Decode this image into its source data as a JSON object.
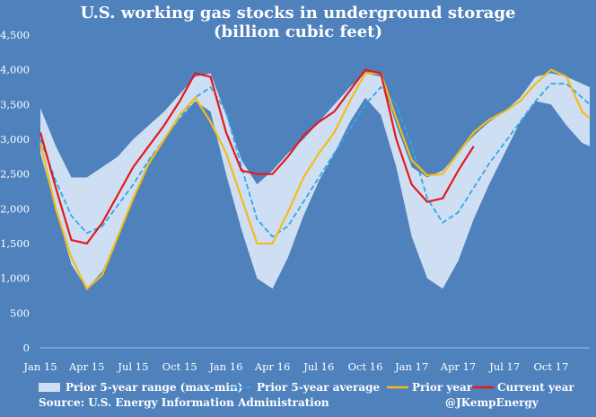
{
  "chart_data": {
    "type": "line",
    "title": "U.S. working gas stocks in underground storage",
    "subtitle": "(billion cubic feet)",
    "xlabel": "",
    "ylabel": "",
    "x_tick_labels": [
      "Jan 15",
      "Apr 15",
      "Jul 15",
      "Oct 15",
      "Jan 16",
      "Apr 16",
      "Jul 16",
      "Oct 16",
      "Jan 17",
      "Apr 17",
      "Jul 17",
      "Oct 17"
    ],
    "y_ticks": [
      0,
      500,
      1000,
      1500,
      2000,
      2500,
      3000,
      3500,
      4000,
      4500
    ],
    "y_tick_labels": [
      "0",
      "500",
      "1,000",
      "1,500",
      "2,000",
      "2,500",
      "3,000",
      "3,500",
      "4,000",
      "4,500"
    ],
    "ylim": [
      0,
      4500
    ],
    "x_unit": "months since Jan 2015",
    "xlim": [
      0,
      35.5
    ],
    "grid": false,
    "legend_position": "bottom",
    "source": "Source: U.S. Energy Information Administration",
    "credit": "@JKempEnergy",
    "range_band": {
      "name": "Prior 5-year range (max-min)",
      "color": "#cfdff3",
      "x": [
        0,
        1,
        2,
        3,
        4,
        5,
        6,
        7,
        8,
        9,
        10,
        11,
        12,
        13,
        14,
        15,
        16,
        17,
        18,
        19,
        20,
        21,
        22,
        23,
        24,
        25,
        26,
        27,
        28,
        29,
        30,
        31,
        32,
        33,
        34,
        35,
        35.5
      ],
      "upper": [
        3450,
        2900,
        2450,
        2450,
        2600,
        2750,
        3000,
        3200,
        3400,
        3650,
        3900,
        3950,
        3350,
        2700,
        2350,
        2550,
        2800,
        3000,
        3250,
        3500,
        3750,
        3950,
        3900,
        3200,
        2600,
        2450,
        2550,
        2800,
        3050,
        3250,
        3400,
        3600,
        3900,
        3950,
        3900,
        3800,
        3750
      ],
      "lower": [
        2800,
        2000,
        1200,
        850,
        1100,
        1600,
        2150,
        2700,
        3000,
        3300,
        3550,
        3400,
        2500,
        1700,
        1000,
        850,
        1300,
        1900,
        2400,
        2800,
        3250,
        3600,
        3350,
        2600,
        1600,
        1000,
        850,
        1250,
        1850,
        2350,
        2800,
        3250,
        3550,
        3500,
        3200,
        2950,
        2900
      ]
    },
    "series": [
      {
        "name": "Prior 5-year average",
        "color": "#2fa7e8",
        "dash": true,
        "x": [
          0,
          1,
          2,
          3,
          4,
          5,
          6,
          7,
          8,
          9,
          10,
          11,
          12,
          13,
          14,
          15,
          16,
          17,
          18,
          19,
          20,
          21,
          22,
          23,
          24,
          25,
          26,
          27,
          28,
          29,
          30,
          31,
          32,
          33,
          34,
          35,
          35.5
        ],
        "values": [
          3000,
          2400,
          1900,
          1650,
          1750,
          2050,
          2350,
          2700,
          3000,
          3300,
          3600,
          3750,
          3400,
          2600,
          1850,
          1600,
          1750,
          2100,
          2450,
          2800,
          3150,
          3500,
          3750,
          3500,
          2900,
          2150,
          1800,
          1950,
          2300,
          2650,
          2950,
          3250,
          3550,
          3800,
          3800,
          3600,
          3500
        ]
      },
      {
        "name": "Prior year",
        "color": "#f1bc1c",
        "x": [
          0,
          1,
          2,
          3,
          4,
          5,
          6,
          7,
          8,
          9,
          10,
          11,
          12,
          13,
          14,
          15,
          16,
          17,
          18,
          19,
          20,
          21,
          22,
          23,
          24,
          25,
          26,
          27,
          28,
          29,
          30,
          31,
          32,
          33,
          34,
          35,
          35.5
        ],
        "values": [
          2950,
          2000,
          1300,
          850,
          1050,
          1600,
          2150,
          2650,
          3000,
          3350,
          3600,
          3250,
          2800,
          2150,
          1500,
          1500,
          1950,
          2450,
          2800,
          3100,
          3550,
          3950,
          3950,
          3300,
          2700,
          2480,
          2500,
          2800,
          3100,
          3280,
          3400,
          3550,
          3800,
          4000,
          3900,
          3400,
          3300
        ]
      },
      {
        "name": "Current year",
        "color": "#e21a1c",
        "x": [
          0,
          1,
          2,
          3,
          4,
          5,
          6,
          7,
          8,
          9,
          10,
          11,
          12,
          13,
          14,
          15,
          16,
          17,
          18,
          19,
          20,
          21,
          22,
          23,
          24,
          25,
          26,
          27,
          28
        ],
        "values": [
          3100,
          2300,
          1550,
          1500,
          1800,
          2200,
          2600,
          2900,
          3200,
          3550,
          3950,
          3900,
          3100,
          2550,
          2500,
          2500,
          2750,
          3050,
          3250,
          3400,
          3700,
          4000,
          3950,
          3000,
          2350,
          2100,
          2150,
          2550,
          2900
        ]
      }
    ]
  }
}
